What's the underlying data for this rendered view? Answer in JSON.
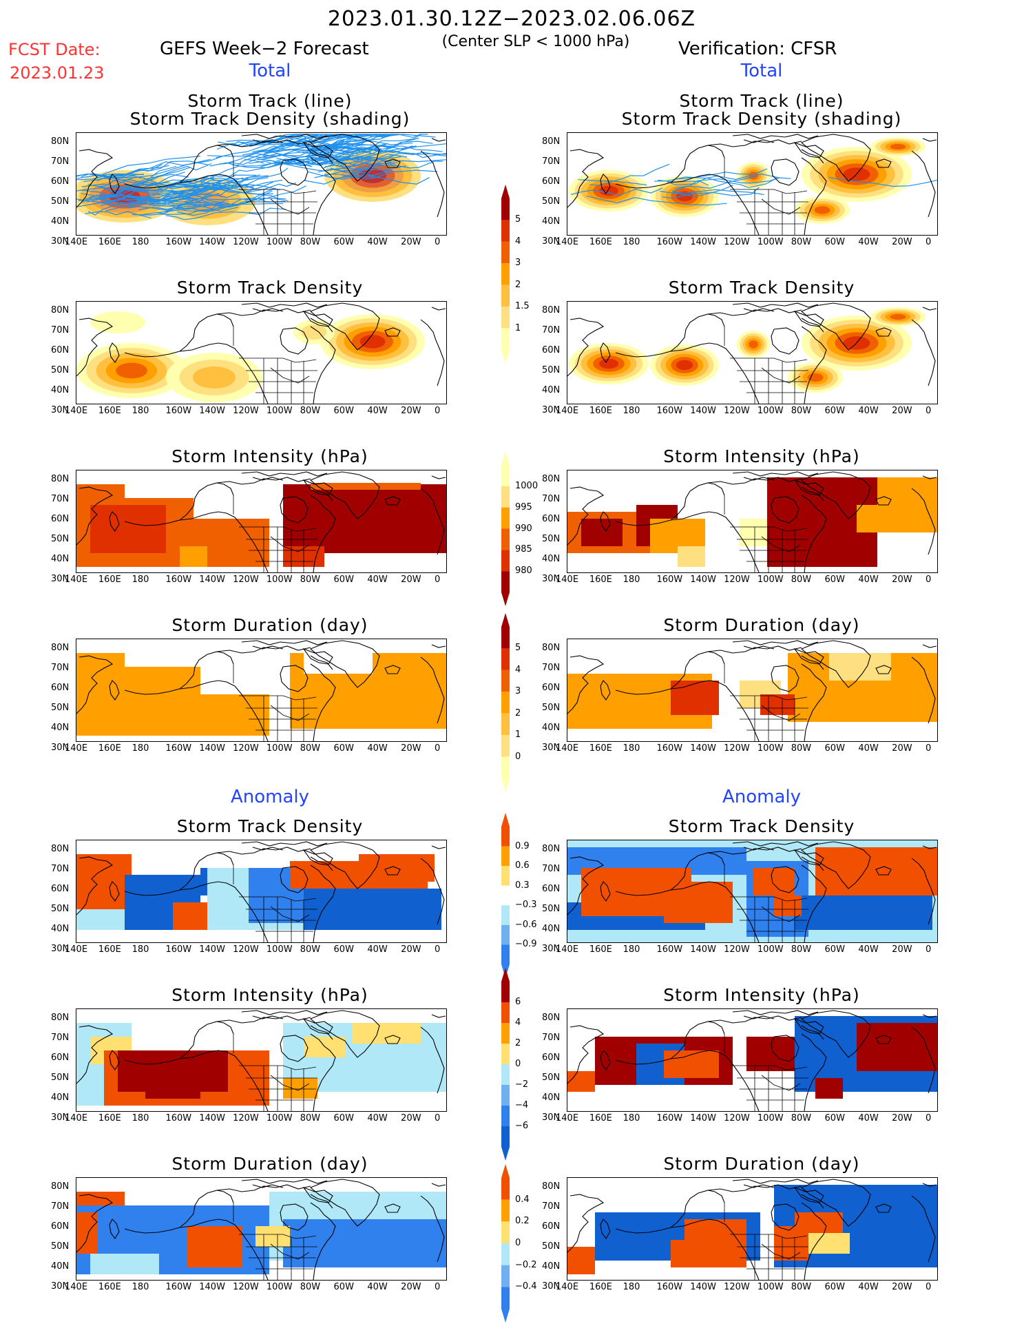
{
  "header": {
    "period": "2023.01.30.12Z−2023.02.06.06Z",
    "condition": "(Center SLP < 1000 hPa)",
    "fcst_date_label": "FCST Date:",
    "fcst_date_value": "2023.01.23",
    "left_title": "GEFS Week−2 Forecast",
    "right_title": "Verification: CFSR"
  },
  "sections": {
    "total": "Total",
    "anomaly": "Anomaly"
  },
  "panel_titles": {
    "track_line": "Storm Track (line)",
    "track_shading": "Storm Track Density (shading)",
    "density": "Storm Track Density",
    "intensity": "Storm Intensity (hPa)",
    "duration": "Storm Duration (day)"
  },
  "axes": {
    "lat_labels": [
      "80N",
      "70N",
      "60N",
      "50N",
      "40N",
      "30N"
    ],
    "lon_labels": [
      "140E",
      "160E",
      "180",
      "160W",
      "140W",
      "120W",
      "100W",
      "80W",
      "60W",
      "40W",
      "20W",
      "0"
    ]
  },
  "colorbars": {
    "density_total": [
      "5",
      "4",
      "3",
      "2",
      "1.5",
      "1"
    ],
    "intensity_total": [
      "1000",
      "995",
      "990",
      "985",
      "980"
    ],
    "duration_total": [
      "5",
      "4",
      "3",
      "2",
      "1",
      "0"
    ],
    "density_anom": [
      "0.9",
      "0.6",
      "0.3",
      "−0.3",
      "−0.6",
      "−0.9"
    ],
    "intensity_anom": [
      "6",
      "4",
      "2",
      "0",
      "−2",
      "−4",
      "−6"
    ],
    "duration_anom": [
      "0.4",
      "0.2",
      "0",
      "−0.2",
      "−0.4"
    ]
  },
  "colors": {
    "warm": [
      "#ffffb0",
      "#ffe080",
      "#ffc040",
      "#ffa000",
      "#f06000",
      "#e03000",
      "#a00000"
    ],
    "anom": [
      "#1060d0",
      "#3080ee",
      "#70b0f0",
      "#b0e8f8",
      "#ffffff",
      "#ffe070",
      "#ffa000",
      "#f05000",
      "#a00000"
    ],
    "track_line": "#1e90ee"
  }
}
